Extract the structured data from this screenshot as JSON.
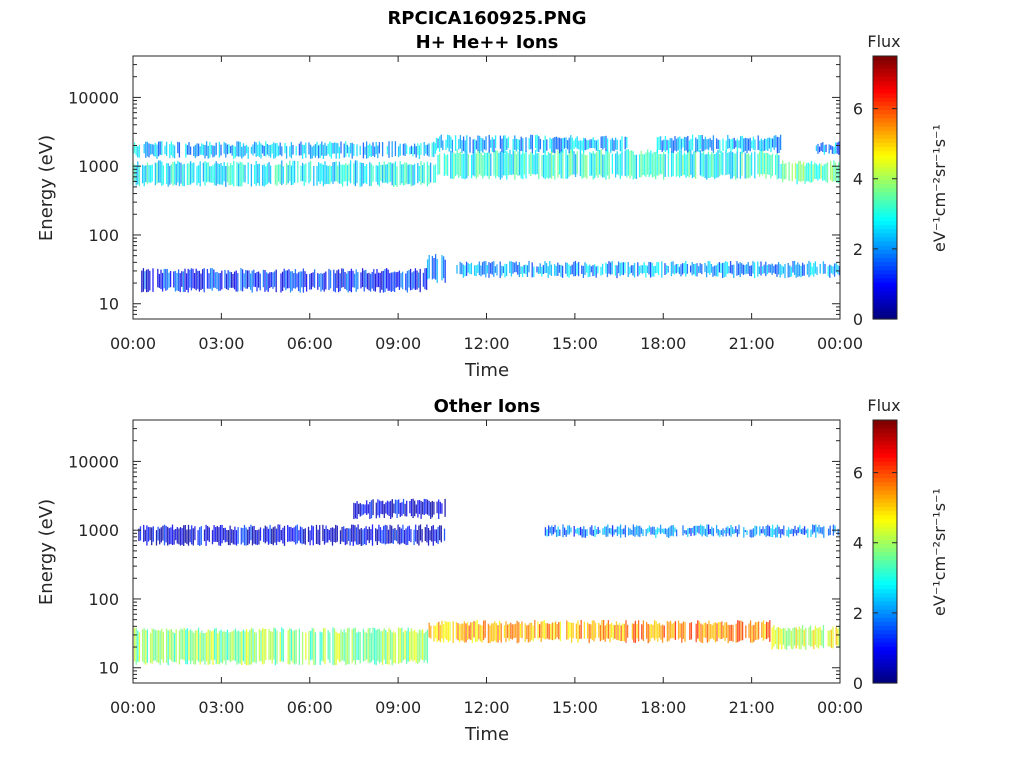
{
  "figure": {
    "title_line1": "RPCICA160925.PNG"
  },
  "chart_data": [
    {
      "type": "heatmap",
      "title": "H+ He++ Ions",
      "xlabel": "Time",
      "ylabel": "Energy (eV)",
      "y_scale": "log",
      "ylim": [
        6,
        40000
      ],
      "xlim": [
        "00:00",
        "24:00"
      ],
      "x_tick_labels": [
        "00:00",
        "03:00",
        "06:00",
        "09:00",
        "12:00",
        "15:00",
        "18:00",
        "21:00",
        "00:00"
      ],
      "y_tick_labels": [
        "10",
        "100",
        "1000",
        "10000"
      ],
      "y_tick_values": [
        10,
        100,
        1000,
        10000
      ],
      "colorbar": {
        "title": "Flux",
        "label": "eV⁻¹cm⁻²sr⁻¹s⁻¹",
        "colormap": "jet",
        "range": [
          0,
          7.5
        ],
        "tick_labels": [
          "0",
          "2",
          "4",
          "6"
        ],
        "tick_values": [
          0,
          2,
          4,
          6
        ]
      },
      "bands": [
        {
          "t_start": 0.0,
          "t_end": 10.3,
          "e_low": 550,
          "e_high": 1100,
          "flux": 2.7
        },
        {
          "t_start": 0.0,
          "t_end": 10.3,
          "e_low": 1400,
          "e_high": 2100,
          "flux": 2.3
        },
        {
          "t_start": 10.3,
          "t_end": 22.0,
          "e_low": 700,
          "e_high": 1600,
          "flux": 3.0
        },
        {
          "t_start": 10.3,
          "t_end": 16.8,
          "e_low": 1700,
          "e_high": 2600,
          "flux": 2.2
        },
        {
          "t_start": 17.8,
          "t_end": 22.0,
          "e_low": 1700,
          "e_high": 2600,
          "flux": 2.2
        },
        {
          "t_start": 22.0,
          "t_end": 24.0,
          "e_low": 600,
          "e_high": 1100,
          "flux": 3.4
        },
        {
          "t_start": 23.2,
          "t_end": 24.0,
          "e_low": 1600,
          "e_high": 2100,
          "flux": 2.0
        },
        {
          "t_start": 0.3,
          "t_end": 10.0,
          "e_low": 16,
          "e_high": 30,
          "flux": 1.2
        },
        {
          "t_start": 10.0,
          "t_end": 10.6,
          "e_low": 22,
          "e_high": 48,
          "flux": 1.6
        },
        {
          "t_start": 11.0,
          "t_end": 24.0,
          "e_low": 26,
          "e_high": 38,
          "flux": 2.1
        }
      ]
    },
    {
      "type": "heatmap",
      "title": "Other Ions",
      "xlabel": "Time",
      "ylabel": "Energy (eV)",
      "y_scale": "log",
      "ylim": [
        6,
        40000
      ],
      "xlim": [
        "00:00",
        "24:00"
      ],
      "x_tick_labels": [
        "00:00",
        "03:00",
        "06:00",
        "09:00",
        "12:00",
        "15:00",
        "18:00",
        "21:00",
        "00:00"
      ],
      "y_tick_labels": [
        "10",
        "100",
        "1000",
        "10000"
      ],
      "y_tick_values": [
        10,
        100,
        1000,
        10000
      ],
      "colorbar": {
        "title": "Flux",
        "label": "eV⁻¹cm⁻²sr⁻¹s⁻¹",
        "colormap": "jet",
        "range": [
          0,
          7.5
        ],
        "tick_labels": [
          "0",
          "2",
          "4",
          "6"
        ],
        "tick_values": [
          0,
          2,
          4,
          6
        ]
      },
      "bands": [
        {
          "t_start": 0.2,
          "t_end": 10.6,
          "e_low": 650,
          "e_high": 1100,
          "flux": 0.8
        },
        {
          "t_start": 7.5,
          "t_end": 10.6,
          "e_low": 1600,
          "e_high": 2600,
          "flux": 0.7
        },
        {
          "t_start": 0.0,
          "t_end": 10.0,
          "e_low": 12,
          "e_high": 35,
          "flux": 3.8
        },
        {
          "t_start": 10.0,
          "t_end": 17.0,
          "e_low": 25,
          "e_high": 45,
          "flux": 5.3
        },
        {
          "t_start": 17.0,
          "t_end": 21.7,
          "e_low": 25,
          "e_high": 45,
          "flux": 5.6
        },
        {
          "t_start": 21.7,
          "t_end": 24.0,
          "e_low": 20,
          "e_high": 38,
          "flux": 4.4
        },
        {
          "t_start": 14.0,
          "t_end": 24.0,
          "e_low": 850,
          "e_high": 1100,
          "flux": 1.8
        }
      ]
    }
  ]
}
